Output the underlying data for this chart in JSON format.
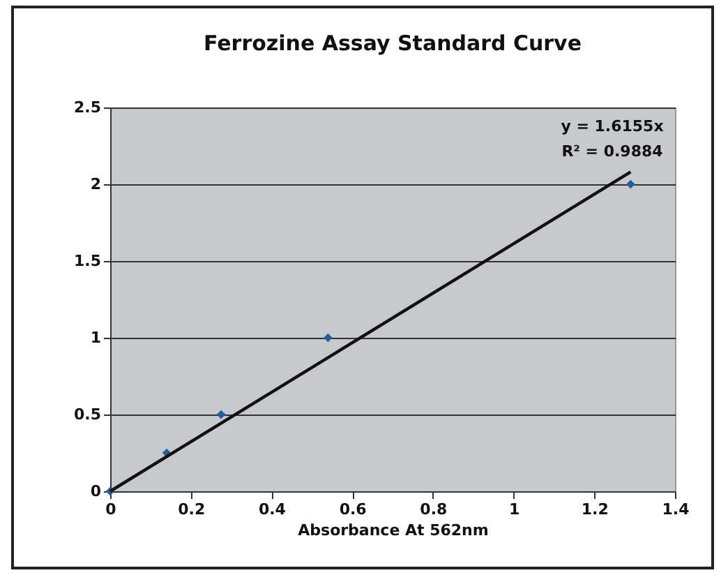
{
  "chart_data": {
    "type": "scatter",
    "title": "Ferrozine Assay Standard Curve",
    "xlabel": "Absorbance At 562nm",
    "series": [
      {
        "color": "#1f5f9f",
        "marker": "diamond",
        "x": [
          0,
          0.14,
          0.275,
          0.54,
          1.29
        ],
        "values": [
          0,
          0.25,
          0.5,
          1,
          2
        ]
      },
      {
        "type": "line",
        "marker": "none",
        "color": "#111111",
        "x": [
          0,
          1.29
        ],
        "values": [
          0,
          2.08
        ]
      }
    ],
    "annotations": [
      "y = 1.6155x",
      "R² = 0.9884"
    ],
    "xlim": [
      0,
      1.4
    ],
    "xticks": [
      0,
      0.2,
      0.4,
      0.6,
      0.8,
      1,
      1.2,
      1.4
    ],
    "ylim": [
      0,
      2.5
    ],
    "yticks": [
      0,
      0.5,
      1,
      1.5,
      2,
      2.5
    ],
    "grid": "y"
  }
}
